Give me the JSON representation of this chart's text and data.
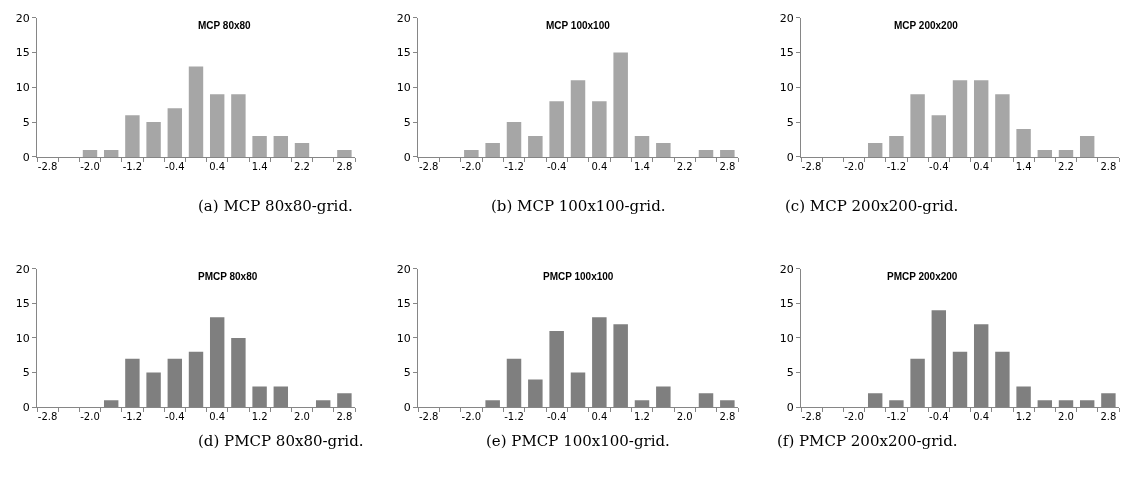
{
  "chart_data": [
    {
      "type": "bar",
      "title": "MCP 80x80",
      "categories": [
        "-2.8",
        null,
        "-2.0",
        null,
        "-1.2",
        null,
        "-0.4",
        null,
        "0.4",
        null,
        "1.4",
        null,
        "2.2",
        null,
        "2.8"
      ],
      "values": [
        0,
        0,
        1,
        1,
        6,
        5,
        7,
        13,
        9,
        9,
        3,
        3,
        2,
        0,
        1
      ],
      "color": "#a6a6a6",
      "ylim": [
        0,
        20
      ],
      "yticks": [
        0,
        5,
        10,
        15,
        20
      ],
      "annotations": [
        "(a) MCP 80x80-grid."
      ]
    },
    {
      "type": "bar",
      "title": "MCP 100x100",
      "categories": [
        "-2.8",
        null,
        "-2.0",
        null,
        "-1.2",
        null,
        "-0.4",
        null,
        "0.4",
        null,
        "1.4",
        null,
        "2.2",
        null,
        "2.8"
      ],
      "values": [
        0,
        0,
        1,
        2,
        5,
        3,
        8,
        11,
        8,
        15,
        3,
        2,
        0,
        1,
        1
      ],
      "color": "#a6a6a6",
      "ylim": [
        0,
        20
      ],
      "yticks": [
        0,
        5,
        10,
        15,
        20
      ],
      "annotations": [
        "(b) MCP 100x100-grid."
      ]
    },
    {
      "type": "bar",
      "title": "MCP 200x200",
      "categories": [
        "-2.8",
        null,
        "-2.0",
        null,
        "-1.2",
        null,
        "-0.4",
        null,
        "0.4",
        null,
        "1.4",
        null,
        "2.2",
        null,
        "2.8"
      ],
      "values": [
        0,
        0,
        0,
        2,
        3,
        9,
        6,
        11,
        11,
        9,
        4,
        1,
        1,
        3,
        0
      ],
      "color": "#a6a6a6",
      "ylim": [
        0,
        20
      ],
      "yticks": [
        0,
        5,
        10,
        15,
        20
      ],
      "annotations": [
        "(c) MCP 200x200-grid."
      ]
    },
    {
      "type": "bar",
      "title": "PMCP 80x80",
      "categories": [
        "-2.8",
        null,
        "-2.0",
        null,
        "-1.2",
        null,
        "-0.4",
        null,
        "0.4",
        null,
        "1.2",
        null,
        "2.0",
        null,
        "2.8"
      ],
      "values": [
        0,
        0,
        0,
        1,
        7,
        5,
        7,
        8,
        13,
        10,
        3,
        3,
        0,
        1,
        2
      ],
      "color": "#7f7f7f",
      "ylim": [
        0,
        20
      ],
      "yticks": [
        0,
        5,
        10,
        15,
        20
      ],
      "annotations": [
        "(d) PMCP 80x80-grid."
      ]
    },
    {
      "type": "bar",
      "title": "PMCP 100x100",
      "categories": [
        "-2.8",
        null,
        "-2.0",
        null,
        "-1.2",
        null,
        "-0.4",
        null,
        "0.4",
        null,
        "1.2",
        null,
        "2.0",
        null,
        "2.8"
      ],
      "values": [
        0,
        0,
        0,
        1,
        7,
        4,
        11,
        5,
        13,
        12,
        1,
        3,
        0,
        2,
        1
      ],
      "color": "#7f7f7f",
      "ylim": [
        0,
        20
      ],
      "yticks": [
        0,
        5,
        10,
        15,
        20
      ],
      "annotations": [
        "(e) PMCP 100x100-grid."
      ]
    },
    {
      "type": "bar",
      "title": "PMCP 200x200",
      "categories": [
        "-2.8",
        null,
        "-2.0",
        null,
        "-1.2",
        null,
        "-0.4",
        null,
        "0.4",
        null,
        "1.2",
        null,
        "2.0",
        null,
        "2.8"
      ],
      "values": [
        0,
        0,
        0,
        2,
        1,
        7,
        14,
        8,
        12,
        8,
        3,
        1,
        1,
        1,
        2
      ],
      "color": "#7f7f7f",
      "ylim": [
        0,
        20
      ],
      "yticks": [
        0,
        5,
        10,
        15,
        20
      ],
      "annotations": [
        "(f) PMCP 200x200-grid."
      ]
    }
  ]
}
